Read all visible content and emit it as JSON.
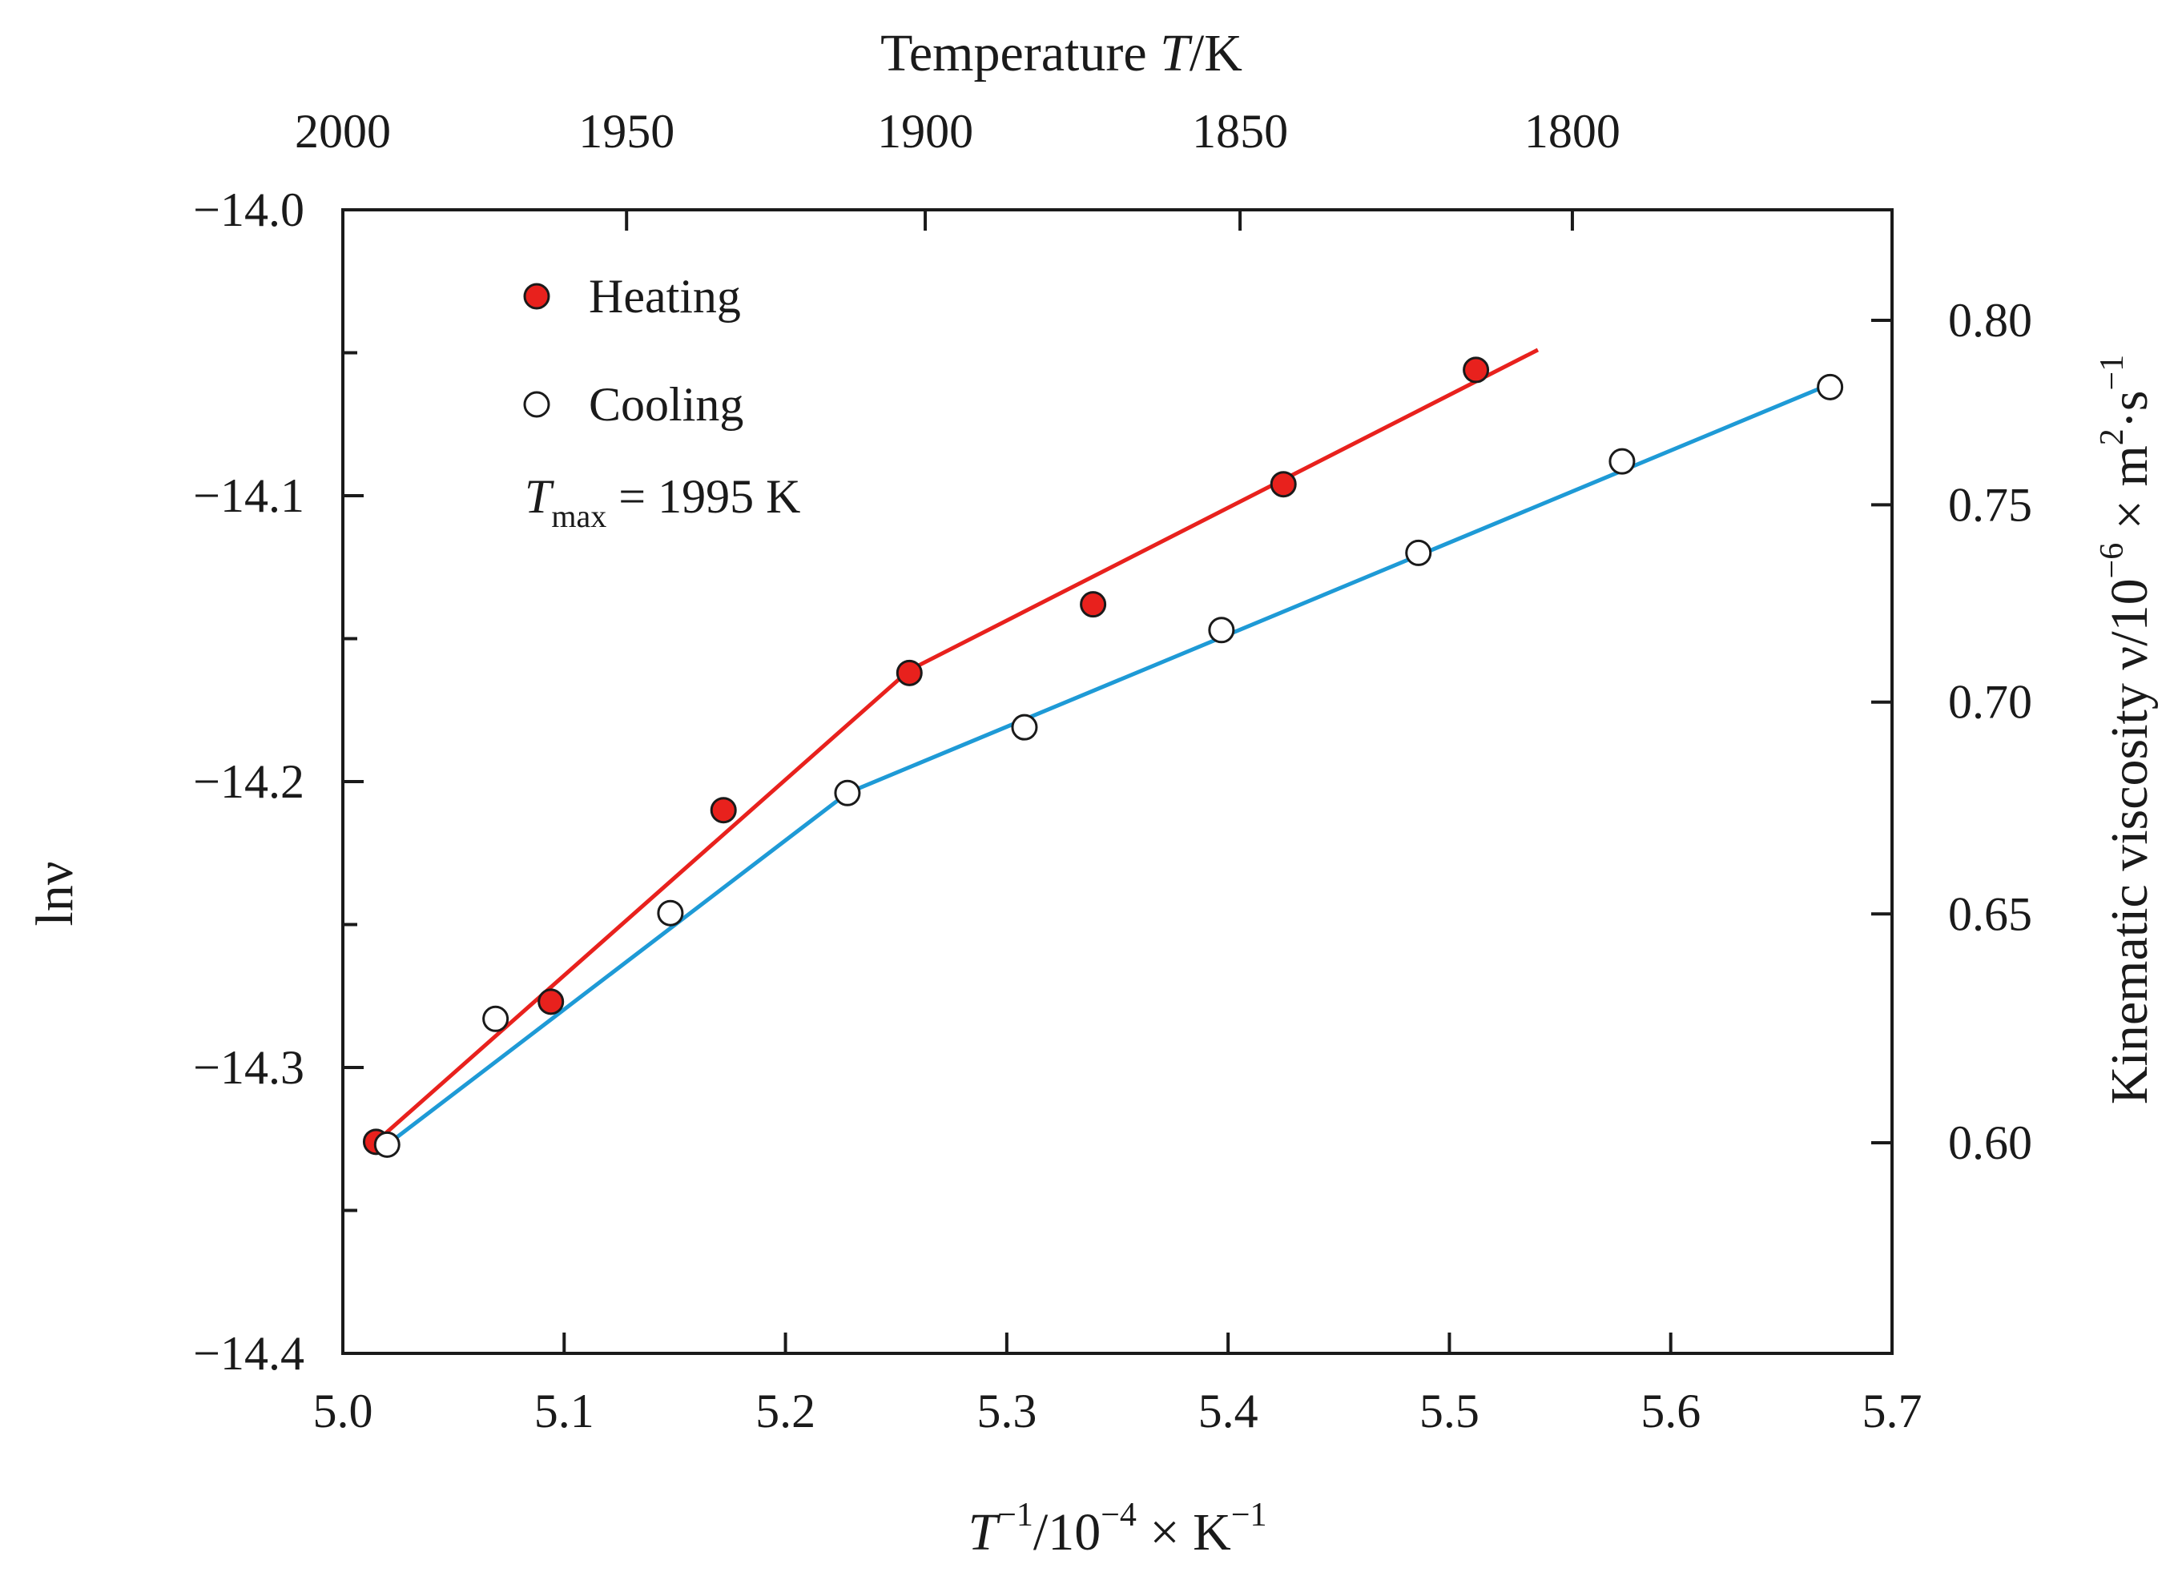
{
  "chart_data": {
    "type": "scatter",
    "x_axis": {
      "label_prefix": "T",
      "label_sup1": "−1",
      "label_mid": "/10",
      "label_sup2": "−4",
      "label_times": " × K",
      "label_sup3": "−1",
      "range": [
        5.0,
        5.7
      ],
      "ticks": [
        5.0,
        5.1,
        5.2,
        5.3,
        5.4,
        5.5,
        5.6,
        5.7
      ],
      "tick_labels": [
        "5.0",
        "5.1",
        "5.2",
        "5.3",
        "5.4",
        "5.5",
        "5.6",
        "5.7"
      ]
    },
    "top_axis": {
      "label_prefix": "Temperature ",
      "label_var": "T",
      "label_unit": "/K",
      "ticks": [
        2000,
        1950,
        1900,
        1850,
        1800
      ],
      "tick_labels": [
        "2000",
        "1950",
        "1900",
        "1850",
        "1800"
      ]
    },
    "y_axis": {
      "label": "lnν",
      "range": [
        -14.4,
        -14.0
      ],
      "ticks": [
        -14.0,
        -14.1,
        -14.2,
        -14.3,
        -14.4
      ],
      "tick_labels": [
        "−14.0",
        "−14.1",
        "−14.2",
        "−14.3",
        "−14.4"
      ],
      "minor_ticks": [
        -14.05,
        -14.15,
        -14.25,
        -14.35
      ]
    },
    "right_axis": {
      "label_main": "Kinematic viscosity ν/10",
      "label_sup1": "−6",
      "label_times": " × m",
      "label_sup2": "2",
      "label_dot": "·s",
      "label_sup3": "−1",
      "ticks": [
        0.6,
        0.65,
        0.7,
        0.75,
        0.8
      ],
      "tick_labels": [
        "0.60",
        "0.65",
        "0.70",
        "0.75",
        "0.80"
      ]
    },
    "series": [
      {
        "name": "Heating",
        "marker": "filled-circle",
        "color": "#e8211d",
        "line_color": "#e8211d",
        "points": [
          [
            5.015,
            -14.326
          ],
          [
            5.094,
            -14.277
          ],
          [
            5.172,
            -14.21
          ],
          [
            5.256,
            -14.162
          ],
          [
            5.339,
            -14.138
          ],
          [
            5.425,
            -14.096
          ],
          [
            5.512,
            -14.056
          ]
        ],
        "fit_line": [
          [
            5.015,
            -14.326
          ],
          [
            5.256,
            -14.161
          ],
          [
            5.54,
            -14.049
          ]
        ]
      },
      {
        "name": "Cooling",
        "marker": "open-circle",
        "color": "#ffffff",
        "line_color": "#1e9ad6",
        "points": [
          [
            5.02,
            -14.327
          ],
          [
            5.069,
            -14.283
          ],
          [
            5.148,
            -14.246
          ],
          [
            5.228,
            -14.204
          ],
          [
            5.308,
            -14.181
          ],
          [
            5.397,
            -14.147
          ],
          [
            5.486,
            -14.12
          ],
          [
            5.578,
            -14.088
          ],
          [
            5.672,
            -14.062
          ]
        ],
        "fit_line": [
          [
            5.02,
            -14.327
          ],
          [
            5.228,
            -14.204
          ],
          [
            5.672,
            -14.061
          ]
        ]
      }
    ],
    "annotation": {
      "var": "T",
      "sub": "max",
      "value": " = 1995 K"
    }
  }
}
